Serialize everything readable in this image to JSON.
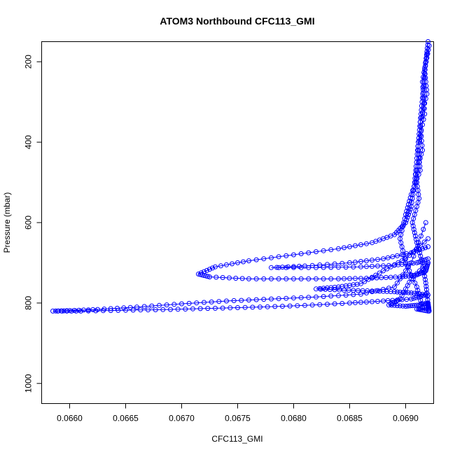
{
  "chart_data": {
    "type": "scatter",
    "title": "ATOM3 Northbound CFC113_GMI",
    "xlabel": "CFC113_GMI",
    "ylabel": "Pressure (mbar)",
    "xlim": [
      0.06575,
      0.06925
    ],
    "ylim": [
      1050,
      150
    ],
    "y_reversed": true,
    "grid": false,
    "legend": "none",
    "marker": "open-circle",
    "connected": true,
    "x_ticks": [
      0.066,
      0.0665,
      0.067,
      0.0675,
      0.068,
      0.0685,
      0.069
    ],
    "x_tick_labels": [
      "0.0660",
      "0.0665",
      "0.0670",
      "0.0675",
      "0.0680",
      "0.0685",
      "0.0690"
    ],
    "y_ticks": [
      200,
      400,
      600,
      800,
      1000
    ],
    "y_tick_labels": [
      "200",
      "400",
      "600",
      "800",
      "1000"
    ],
    "color": "#0000ff",
    "series": [
      {
        "points": [
          [
            0.0692,
            150
          ],
          [
            0.06918,
            200
          ],
          [
            0.06916,
            260
          ],
          [
            0.06914,
            320
          ],
          [
            0.06912,
            380
          ],
          [
            0.0691,
            440
          ],
          [
            0.06908,
            500
          ],
          [
            0.06905,
            560
          ],
          [
            0.069,
            600
          ],
          [
            0.0689,
            630
          ],
          [
            0.0687,
            650
          ],
          [
            0.0684,
            665
          ],
          [
            0.068,
            680
          ],
          [
            0.0676,
            695
          ],
          [
            0.0673,
            710
          ],
          [
            0.06715,
            728
          ],
          [
            0.06725,
            735
          ],
          [
            0.0676,
            740
          ],
          [
            0.068,
            740
          ],
          [
            0.0684,
            740
          ],
          [
            0.0687,
            738
          ],
          [
            0.06895,
            735
          ],
          [
            0.0691,
            730
          ],
          [
            0.06918,
            720
          ],
          [
            0.0692,
            700
          ]
        ]
      },
      {
        "points": [
          [
            0.06918,
            600
          ],
          [
            0.06905,
            700
          ],
          [
            0.0689,
            760
          ],
          [
            0.0686,
            778
          ],
          [
            0.0682,
            785
          ],
          [
            0.0678,
            790
          ],
          [
            0.0674,
            795
          ],
          [
            0.067,
            802
          ],
          [
            0.0666,
            810
          ],
          [
            0.06625,
            816
          ],
          [
            0.066,
            819
          ],
          [
            0.06585,
            820
          ],
          [
            0.0661,
            820
          ],
          [
            0.0665,
            818
          ],
          [
            0.0669,
            816
          ],
          [
            0.0673,
            813
          ],
          [
            0.0677,
            810
          ],
          [
            0.0681,
            806
          ],
          [
            0.0685,
            800
          ],
          [
            0.0688,
            795
          ],
          [
            0.06905,
            790
          ],
          [
            0.06918,
            780
          ]
        ]
      },
      {
        "points": [
          [
            0.0692,
            660
          ],
          [
            0.06905,
            675
          ],
          [
            0.0688,
            690
          ],
          [
            0.0685,
            700
          ],
          [
            0.0681,
            708
          ],
          [
            0.0678,
            712
          ],
          [
            0.0682,
            712
          ],
          [
            0.0686,
            710
          ],
          [
            0.0689,
            706
          ],
          [
            0.0691,
            700
          ],
          [
            0.0692,
            690
          ]
        ]
      },
      {
        "points": [
          [
            0.0692,
            640
          ],
          [
            0.069,
            690
          ],
          [
            0.0688,
            720
          ],
          [
            0.0686,
            752
          ],
          [
            0.0684,
            760
          ],
          [
            0.0682,
            765
          ],
          [
            0.06845,
            768
          ],
          [
            0.0687,
            770
          ],
          [
            0.0689,
            772
          ],
          [
            0.06905,
            775
          ],
          [
            0.0692,
            780
          ]
        ]
      },
      {
        "points": [
          [
            0.0692,
            700
          ],
          [
            0.06905,
            740
          ],
          [
            0.06895,
            790
          ],
          [
            0.06885,
            805
          ],
          [
            0.069,
            808
          ],
          [
            0.06912,
            805
          ],
          [
            0.0692,
            800
          ],
          [
            0.0692,
            810
          ],
          [
            0.0691,
            815
          ],
          [
            0.0692,
            820
          ]
        ]
      },
      {
        "points": [
          [
            0.06921,
            160
          ],
          [
            0.06917,
            220
          ],
          [
            0.06919,
            280
          ],
          [
            0.06913,
            350
          ],
          [
            0.06915,
            420
          ],
          [
            0.06909,
            480
          ],
          [
            0.06912,
            540
          ],
          [
            0.06906,
            600
          ],
          [
            0.0691,
            650
          ],
          [
            0.06915,
            700
          ],
          [
            0.06918,
            750
          ],
          [
            0.0692,
            800
          ],
          [
            0.06921,
            820
          ]
        ]
      },
      {
        "points": [
          [
            0.06919,
            180
          ],
          [
            0.06915,
            250
          ],
          [
            0.06917,
            330
          ],
          [
            0.06911,
            410
          ],
          [
            0.06913,
            470
          ],
          [
            0.06905,
            530
          ],
          [
            0.069,
            580
          ],
          [
            0.06895,
            640
          ],
          [
            0.069,
            700
          ],
          [
            0.0691,
            760
          ],
          [
            0.06915,
            810
          ]
        ]
      }
    ]
  }
}
